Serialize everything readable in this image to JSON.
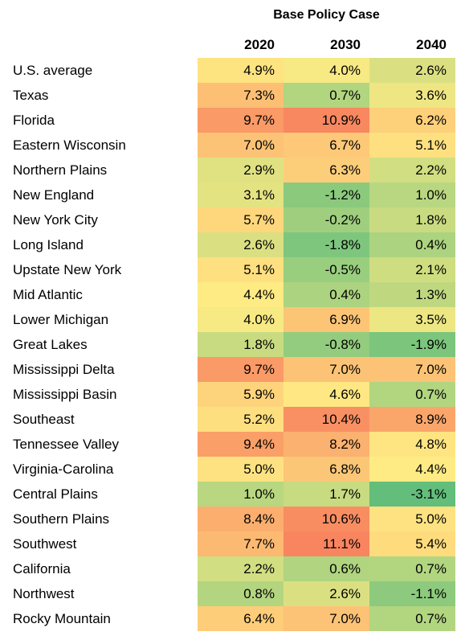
{
  "chart_data": {
    "type": "heatmap",
    "title": "Base Policy Case",
    "columns": [
      "2020",
      "2030",
      "2040"
    ],
    "rows": [
      {
        "label": "U.S. average",
        "values": [
          "4.9%",
          "4.0%",
          "2.6%"
        ]
      },
      {
        "label": "Texas",
        "values": [
          "7.3%",
          "0.7%",
          "3.6%"
        ]
      },
      {
        "label": "Florida",
        "values": [
          "9.7%",
          "10.9%",
          "6.2%"
        ]
      },
      {
        "label": "Eastern Wisconsin",
        "values": [
          "7.0%",
          "6.7%",
          "5.1%"
        ]
      },
      {
        "label": "Northern Plains",
        "values": [
          "2.9%",
          "6.3%",
          "2.2%"
        ]
      },
      {
        "label": "New England",
        "values": [
          "3.1%",
          "-1.2%",
          "1.0%"
        ]
      },
      {
        "label": "New York City",
        "values": [
          "5.7%",
          "-0.2%",
          "1.8%"
        ]
      },
      {
        "label": "Long Island",
        "values": [
          "2.6%",
          "-1.8%",
          "0.4%"
        ]
      },
      {
        "label": "Upstate New York",
        "values": [
          "5.1%",
          "-0.5%",
          "2.1%"
        ]
      },
      {
        "label": "Mid Atlantic",
        "values": [
          "4.4%",
          "0.4%",
          "1.3%"
        ]
      },
      {
        "label": "Lower Michigan",
        "values": [
          "4.0%",
          "6.9%",
          "3.5%"
        ]
      },
      {
        "label": "Great Lakes",
        "values": [
          "1.8%",
          "-0.8%",
          "-1.9%"
        ]
      },
      {
        "label": "Mississippi Delta",
        "values": [
          "9.7%",
          "7.0%",
          "7.0%"
        ]
      },
      {
        "label": "Mississippi Basin",
        "values": [
          "5.9%",
          "4.6%",
          "0.7%"
        ]
      },
      {
        "label": "Southeast",
        "values": [
          "5.2%",
          "10.4%",
          "8.9%"
        ]
      },
      {
        "label": "Tennessee Valley",
        "values": [
          "9.4%",
          "8.2%",
          "4.8%"
        ]
      },
      {
        "label": "Virginia-Carolina",
        "values": [
          "5.0%",
          "6.8%",
          "4.4%"
        ]
      },
      {
        "label": "Central Plains",
        "values": [
          "1.0%",
          "1.7%",
          "-3.1%"
        ]
      },
      {
        "label": "Southern Plains",
        "values": [
          "8.4%",
          "10.6%",
          "5.0%"
        ]
      },
      {
        "label": "Southwest",
        "values": [
          "7.7%",
          "11.1%",
          "5.4%"
        ]
      },
      {
        "label": "California",
        "values": [
          "2.2%",
          "0.6%",
          "0.7%"
        ]
      },
      {
        "label": "Northwest",
        "values": [
          "0.8%",
          "2.6%",
          "-1.1%"
        ]
      },
      {
        "label": "Rocky Mountain",
        "values": [
          "6.4%",
          "7.0%",
          "0.7%"
        ]
      }
    ],
    "color_scale": {
      "low": "#63be7b",
      "mid": "#ffeb84",
      "high": "#f8855f"
    }
  }
}
